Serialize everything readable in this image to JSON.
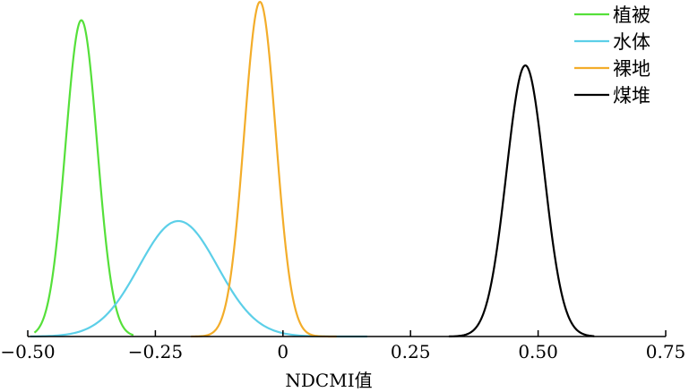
{
  "chart_data": {
    "type": "line",
    "title": "",
    "xlabel": "NDCMI值",
    "ylabel": "",
    "xlim": [
      -0.5,
      0.75
    ],
    "ylim": [
      0,
      1.0
    ],
    "x_ticks": [
      -0.5,
      -0.25,
      0,
      0.25,
      0.5,
      0.75
    ],
    "x_tick_labels": [
      "−0.50",
      "−0.25",
      "0",
      "0.25",
      "0.50",
      "0.75"
    ],
    "grid": false,
    "legend": "top-right",
    "series": [
      {
        "name": "植被",
        "color": "#55e03a",
        "mean": -0.395,
        "sd": 0.031,
        "peak": 0.945,
        "x_range": [
          -0.487,
          -0.293
        ]
      },
      {
        "name": "水体",
        "color": "#5ccfe8",
        "mean": -0.205,
        "sd": 0.077,
        "peak": 0.345,
        "x_range": [
          -0.495,
          0.165
        ]
      },
      {
        "name": "裸地",
        "color": "#f3ad2a",
        "mean": -0.045,
        "sd": 0.031,
        "peak": 1.0,
        "x_range": [
          -0.18,
          0.105
        ]
      },
      {
        "name": "煤堆",
        "color": "#000000",
        "mean": 0.475,
        "sd": 0.037,
        "peak": 0.81,
        "x_range": [
          0.325,
          0.61
        ]
      }
    ]
  }
}
